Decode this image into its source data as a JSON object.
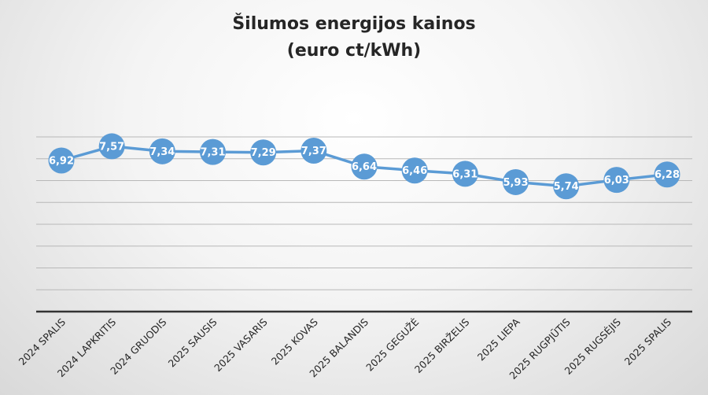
{
  "chart_data": {
    "type": "line",
    "title": "Šilumos energijos kainos",
    "subtitle": "(euro ct/kWh)",
    "categories": [
      "2024 SPALIS",
      "2024 LAPKRITIS",
      "2024 GRUODIS",
      "2025 SAUSIS",
      "2025 VASARIS",
      "2025 KOVAS",
      "2025 BALANDIS",
      "2025 GEGUŽĖ",
      "2025 BIRŽELIS",
      "2025 LIEPA",
      "2025 RUGPJŪTIS",
      "2025 RUGSĖJIS",
      "2025 SPALIS"
    ],
    "series": [
      {
        "values": [
          6.92,
          7.57,
          7.34,
          7.31,
          7.29,
          7.37,
          6.64,
          6.46,
          6.31,
          5.93,
          5.74,
          6.03,
          6.28
        ],
        "labels": [
          "6,92",
          "7,57",
          "7,34",
          "7,31",
          "7,29",
          "7,37",
          "6,64",
          "6,46",
          "6,31",
          "5,93",
          "5,74",
          "6,03",
          "6,28"
        ]
      }
    ],
    "ylim": [
      0,
      8
    ],
    "grid": true,
    "legend": "none",
    "colors": {
      "series": "#5b9bd5",
      "grid": "#b8b8b8",
      "axis": "#333333"
    }
  }
}
